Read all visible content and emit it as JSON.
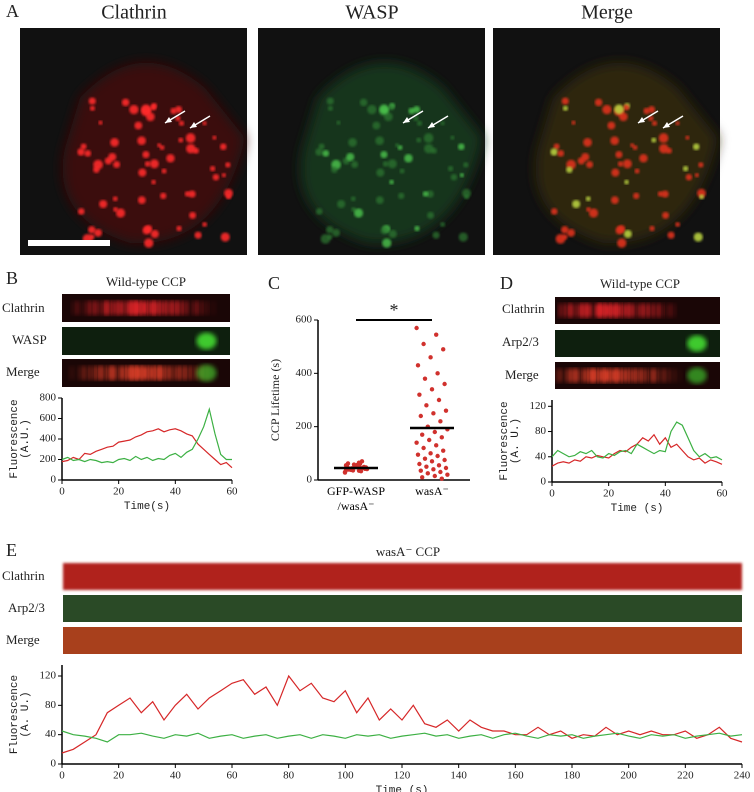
{
  "figure": {
    "panel_labels": [
      "A",
      "B",
      "C",
      "D",
      "E"
    ],
    "panel_a": {
      "titles": [
        "Clathrin",
        "WASP",
        "Merge"
      ]
    },
    "panel_b": {
      "title": "Wild-type CCP",
      "rows": [
        "Clathrin",
        "WASP",
        "Merge"
      ]
    },
    "panel_d": {
      "title": "Wild-type CCP",
      "rows": [
        "Clathrin",
        "Arp2/3",
        "Merge"
      ]
    },
    "panel_e": {
      "title": "wasA⁻ CCP",
      "rows": [
        "Clathrin",
        "Arp2/3",
        "Merge"
      ]
    }
  },
  "chart_data": [
    {
      "type": "line",
      "x": [
        0,
        2,
        4,
        6,
        8,
        10,
        12,
        14,
        16,
        18,
        20,
        22,
        24,
        26,
        28,
        30,
        32,
        34,
        36,
        38,
        40,
        42,
        44,
        46,
        48,
        50,
        52,
        54,
        56,
        58,
        60
      ],
      "xlim": [
        0,
        60
      ],
      "xticks": [
        0,
        20,
        40,
        60
      ],
      "ylim": [
        0,
        800
      ],
      "yticks": [
        0,
        200,
        400,
        600,
        800
      ],
      "xlabel": "Time(s)",
      "ylabel": [
        "Fluorescence",
        "(A.U.)"
      ],
      "series": [
        {
          "color": "#d62728",
          "values": [
            180,
            190,
            220,
            200,
            260,
            250,
            280,
            300,
            320,
            330,
            370,
            380,
            390,
            420,
            440,
            470,
            480,
            500,
            470,
            490,
            500,
            480,
            450,
            430,
            350,
            300,
            250,
            200,
            150,
            170,
            120
          ]
        },
        {
          "color": "#3cb043",
          "values": [
            200,
            220,
            190,
            200,
            180,
            200,
            190,
            170,
            180,
            170,
            200,
            210,
            190,
            230,
            200,
            220,
            190,
            210,
            200,
            240,
            260,
            220,
            270,
            300,
            400,
            520,
            690,
            450,
            250,
            200,
            200
          ]
        }
      ]
    },
    {
      "type": "strip",
      "categories": [
        "GFP-WASP /wasA⁻",
        "wasA⁻"
      ],
      "ylim": [
        0,
        600
      ],
      "yticks": [
        0,
        200,
        400,
        600
      ],
      "ylabel": "CCP Lifetime (s)",
      "color": "#d0312d",
      "annotation": "*",
      "means": [
        45,
        195
      ],
      "series": [
        {
          "values": [
            30,
            35,
            40,
            45,
            50,
            55,
            60,
            38,
            42,
            48,
            52,
            33,
            44,
            47,
            56,
            62,
            70,
            36,
            41,
            53,
            39,
            46,
            58,
            28,
            65,
            43,
            49,
            51,
            37,
            45
          ]
        },
        {
          "values": [
            570,
            545,
            510,
            490,
            460,
            430,
            400,
            380,
            360,
            340,
            320,
            300,
            280,
            260,
            250,
            240,
            220,
            200,
            190,
            180,
            170,
            160,
            150,
            140,
            130,
            120,
            110,
            100,
            95,
            90,
            80,
            75,
            70,
            60,
            55,
            50,
            45,
            40,
            35,
            30,
            25,
            20,
            15,
            10,
            5
          ]
        }
      ]
    },
    {
      "type": "line",
      "x": [
        0,
        2,
        4,
        6,
        8,
        10,
        12,
        14,
        16,
        18,
        20,
        22,
        24,
        26,
        28,
        30,
        32,
        34,
        36,
        38,
        40,
        42,
        44,
        46,
        48,
        50,
        52,
        54,
        56,
        58,
        60
      ],
      "xlim": [
        0,
        60
      ],
      "xticks": [
        0,
        20,
        40,
        60
      ],
      "ylim": [
        0,
        130
      ],
      "yticks": [
        0,
        40,
        80,
        120
      ],
      "xlabel": "Time (s)",
      "ylabel": [
        "Fluorescence",
        "(A. U.)"
      ],
      "series": [
        {
          "color": "#d62728",
          "values": [
            25,
            30,
            32,
            30,
            35,
            33,
            40,
            38,
            42,
            40,
            38,
            45,
            50,
            48,
            55,
            60,
            70,
            65,
            75,
            60,
            70,
            55,
            60,
            50,
            40,
            35,
            38,
            30,
            35,
            32,
            28
          ]
        },
        {
          "color": "#3cb043",
          "values": [
            40,
            50,
            45,
            40,
            42,
            48,
            45,
            50,
            40,
            38,
            45,
            42,
            48,
            50,
            45,
            60,
            55,
            50,
            45,
            50,
            48,
            80,
            95,
            90,
            70,
            50,
            40,
            45,
            38,
            40,
            35
          ]
        }
      ]
    },
    {
      "type": "line",
      "x": [
        0,
        4,
        8,
        12,
        16,
        20,
        24,
        28,
        32,
        36,
        40,
        44,
        48,
        52,
        56,
        60,
        64,
        68,
        72,
        76,
        80,
        84,
        88,
        92,
        96,
        100,
        104,
        108,
        112,
        116,
        120,
        124,
        128,
        132,
        136,
        140,
        144,
        148,
        152,
        156,
        160,
        164,
        168,
        172,
        176,
        180,
        184,
        188,
        192,
        196,
        200,
        204,
        208,
        212,
        216,
        220,
        224,
        228,
        232,
        236,
        240
      ],
      "xlim": [
        0,
        240
      ],
      "xticks": [
        0,
        20,
        40,
        60,
        80,
        100,
        120,
        140,
        160,
        180,
        200,
        220,
        240
      ],
      "ylim": [
        0,
        135
      ],
      "yticks": [
        0,
        40,
        80,
        120
      ],
      "xlabel": "Time (s)",
      "ylabel": [
        "Fluorescence",
        "(A. U.)"
      ],
      "series": [
        {
          "color": "#d62728",
          "values": [
            15,
            20,
            30,
            40,
            70,
            80,
            90,
            70,
            85,
            60,
            80,
            95,
            75,
            90,
            100,
            110,
            115,
            95,
            105,
            80,
            120,
            100,
            110,
            90,
            85,
            100,
            70,
            90,
            60,
            75,
            60,
            80,
            55,
            50,
            60,
            45,
            60,
            50,
            45,
            45,
            40,
            40,
            50,
            40,
            45,
            35,
            40,
            38,
            50,
            40,
            45,
            40,
            45,
            40,
            40,
            45,
            35,
            40,
            50,
            35,
            30
          ]
        },
        {
          "color": "#3cb043",
          "values": [
            45,
            40,
            38,
            35,
            30,
            40,
            40,
            42,
            38,
            35,
            40,
            38,
            42,
            35,
            38,
            40,
            35,
            38,
            40,
            35,
            38,
            40,
            35,
            40,
            38,
            35,
            40,
            38,
            40,
            35,
            38,
            40,
            42,
            38,
            40,
            35,
            38,
            40,
            35,
            40,
            42,
            38,
            35,
            40,
            38,
            40,
            35,
            38,
            40,
            42,
            38,
            35,
            40,
            38,
            40,
            35,
            38,
            40,
            42,
            38,
            40
          ]
        }
      ]
    }
  ]
}
